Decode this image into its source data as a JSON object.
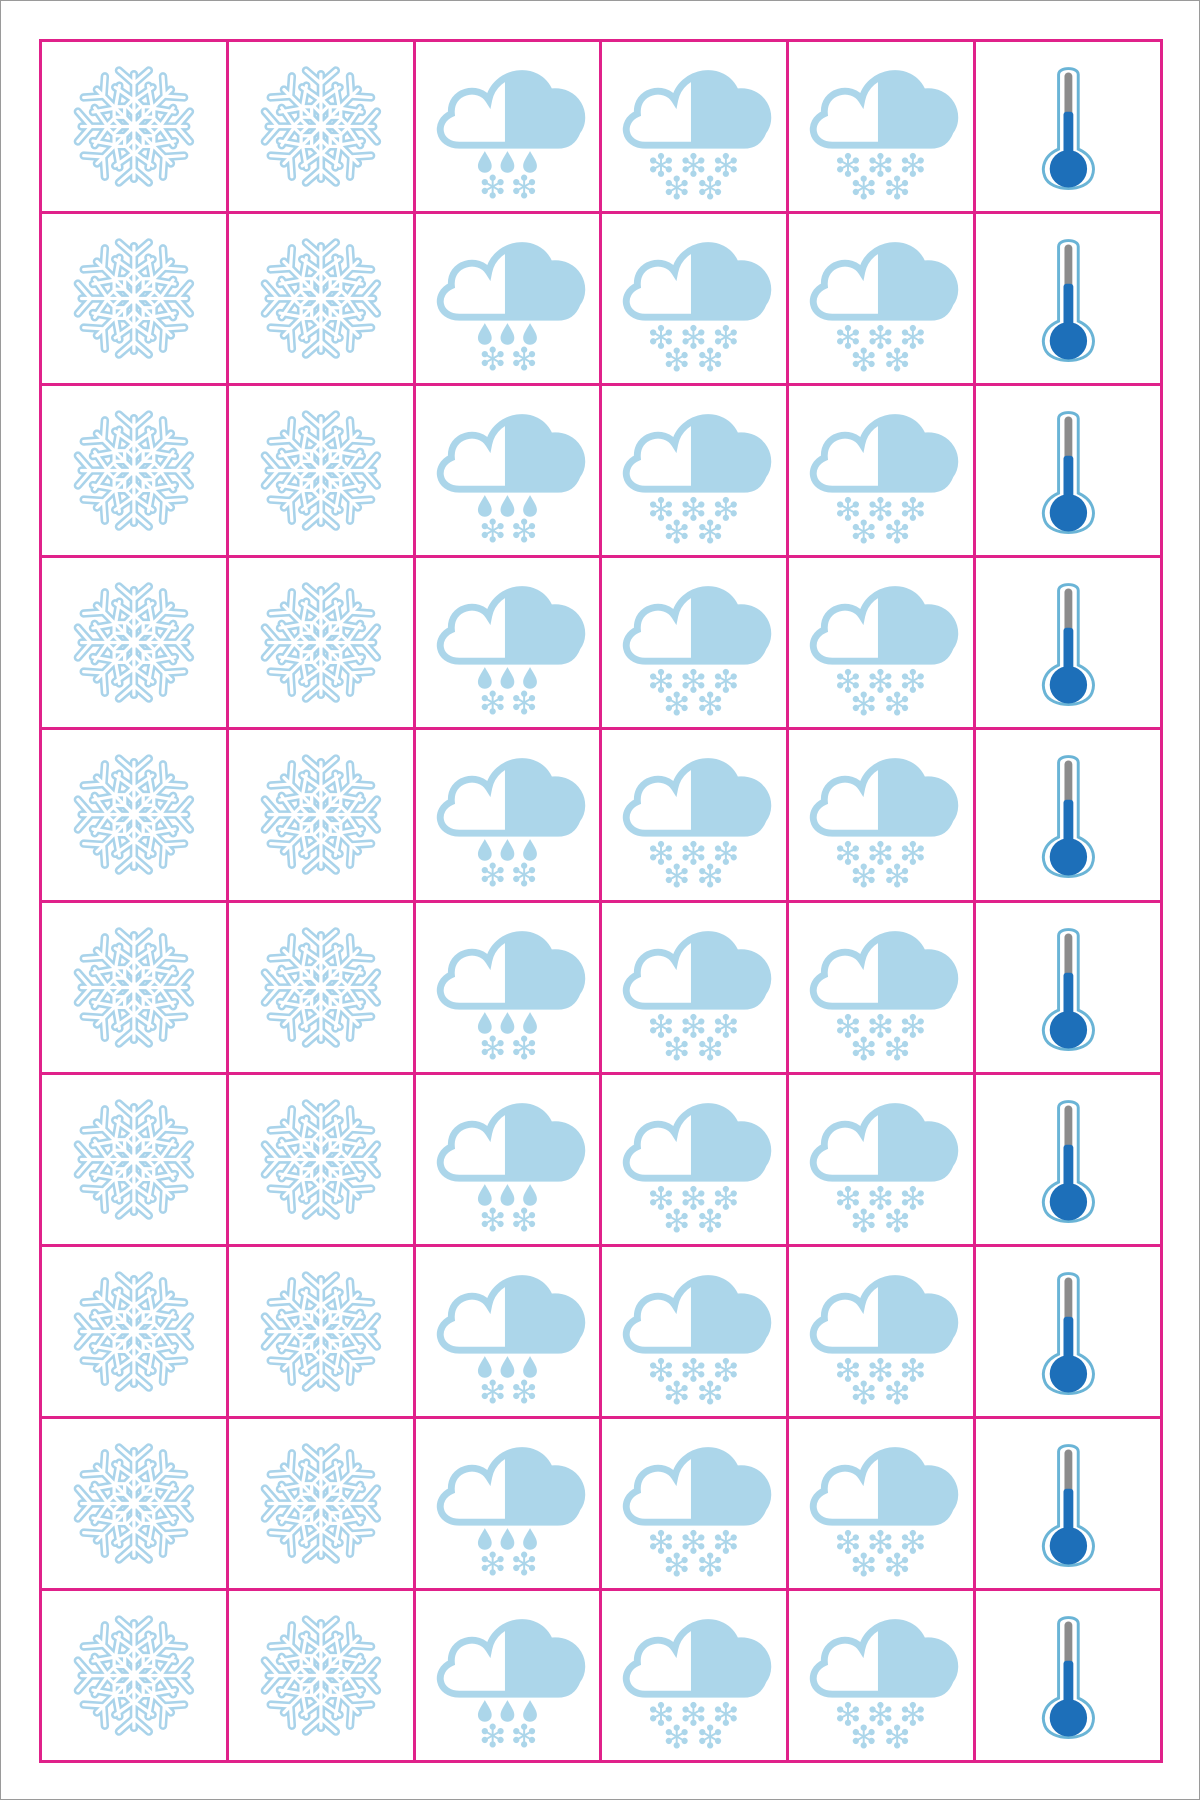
{
  "sheet": {
    "grid_color": "#e0218a",
    "rows": 10,
    "columns": [
      {
        "icon": "snowflake-icon"
      },
      {
        "icon": "snowflake-icon"
      },
      {
        "icon": "cloud-rain-snow-icon"
      },
      {
        "icon": "cloud-snow-icon"
      },
      {
        "icon": "cloud-snow-icon"
      },
      {
        "icon": "thermometer-cold-icon"
      }
    ]
  },
  "colors": {
    "ice_outline": "#a9d3ea",
    "cloud_fill": "#acd6ea",
    "thermometer_bulb": "#1d6fb9",
    "thermometer_stem": "#8c8c8c",
    "thermometer_ring": "#6ab4d6"
  }
}
